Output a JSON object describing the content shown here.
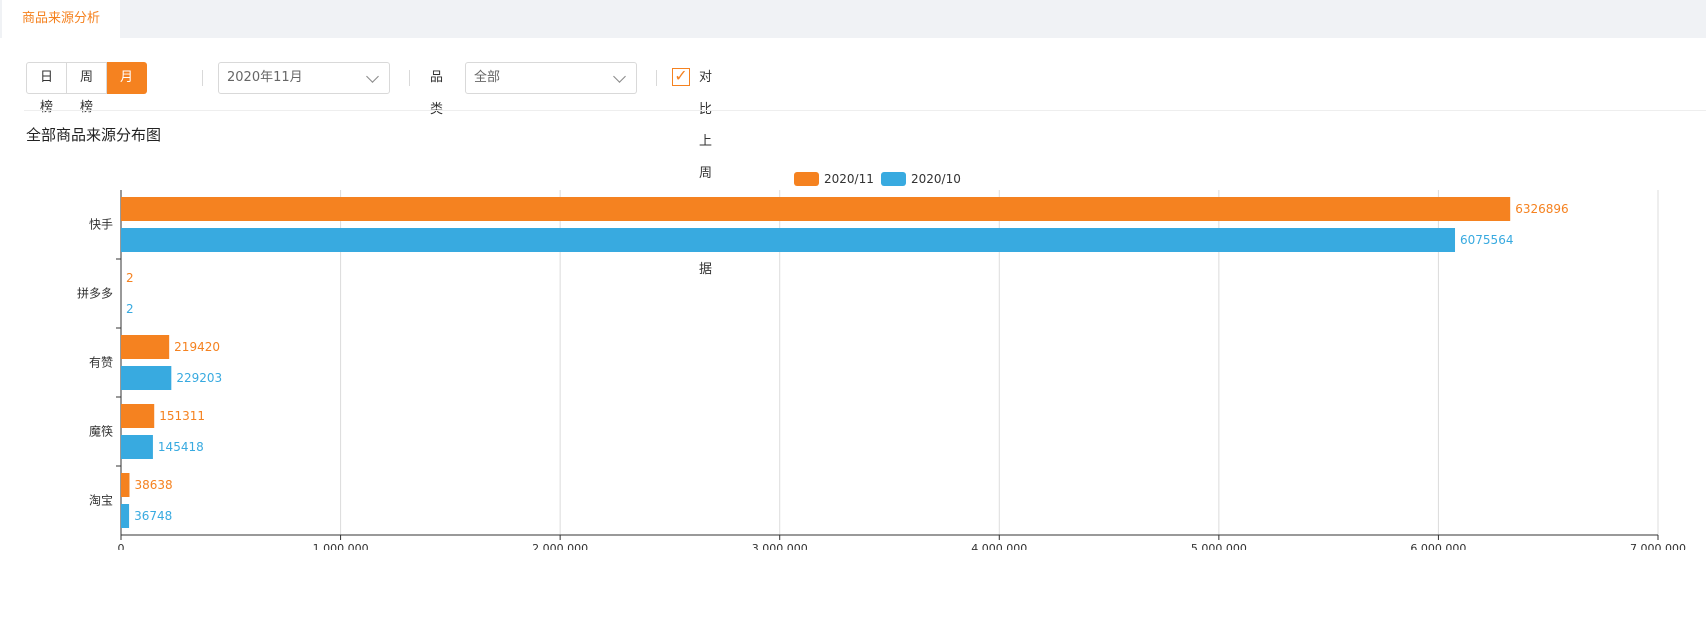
{
  "tab": {
    "label": "商品来源分析"
  },
  "toolbar": {
    "ranges": [
      {
        "label": "日榜",
        "active": false
      },
      {
        "label": "周榜",
        "active": false
      },
      {
        "label": "月榜",
        "active": true
      }
    ],
    "month_value": "2020年11月",
    "category_label": "品类",
    "category_value": "全部",
    "compare_checked": true,
    "compare_label": "对比上周期数据"
  },
  "chart_title": "全部商品来源分布图",
  "colors": {
    "accent": "#f58220",
    "current": "#f58220",
    "previous": "#38aae0"
  },
  "chart_data": {
    "type": "bar",
    "orientation": "horizontal",
    "categories": [
      "快手",
      "拼多多",
      "有赞",
      "魔筷",
      "淘宝"
    ],
    "series": [
      {
        "name": "2020/11",
        "values": [
          6326896,
          2,
          219420,
          151311,
          38638
        ]
      },
      {
        "name": "2020/10",
        "values": [
          6075564,
          2,
          229203,
          145418,
          36748
        ]
      }
    ],
    "xlim": [
      0,
      7000000
    ],
    "xticks": [
      "0",
      "1,000,000",
      "2,000,000",
      "3,000,000",
      "4,000,000",
      "5,000,000",
      "6,000,000",
      "7,000,000"
    ],
    "grid": true,
    "legend": "top-center",
    "data_labels": true
  }
}
